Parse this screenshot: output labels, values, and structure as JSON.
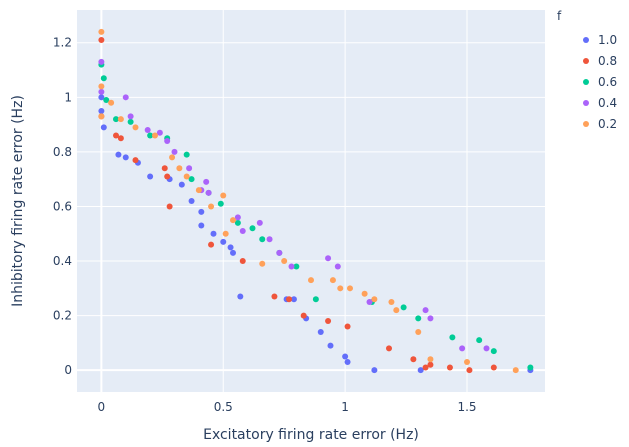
{
  "chart_data": {
    "type": "scatter",
    "xlabel": "Excitatory firing rate error (Hz)",
    "ylabel": "Inhibitory firing rate error (Hz)",
    "xlim": [
      -0.1,
      1.82
    ],
    "ylim": [
      -0.08,
      1.32
    ],
    "x_ticks": [
      0,
      0.5,
      1,
      1.5
    ],
    "x_tick_labels": [
      "0",
      "0.5",
      "1",
      "1.5"
    ],
    "y_ticks": [
      0,
      0.2,
      0.4,
      0.6,
      0.8,
      1,
      1.2
    ],
    "y_tick_labels": [
      "0",
      "0.2",
      "0.4",
      "0.6",
      "0.8",
      "1",
      "1.2"
    ],
    "grid": true,
    "plot_background": "#e5ecf6",
    "legend_title": "f",
    "legend_position": "top-right",
    "series": [
      {
        "name": "1.0",
        "color": "#636efa",
        "points": [
          [
            0.0,
            1.0
          ],
          [
            0.0,
            0.95
          ],
          [
            0.01,
            0.89
          ],
          [
            0.07,
            0.79
          ],
          [
            0.1,
            0.78
          ],
          [
            0.15,
            0.76
          ],
          [
            0.2,
            0.71
          ],
          [
            0.28,
            0.7
          ],
          [
            0.33,
            0.68
          ],
          [
            0.37,
            0.62
          ],
          [
            0.41,
            0.58
          ],
          [
            0.41,
            0.53
          ],
          [
            0.46,
            0.5
          ],
          [
            0.5,
            0.47
          ],
          [
            0.53,
            0.45
          ],
          [
            0.54,
            0.43
          ],
          [
            0.57,
            0.27
          ],
          [
            0.76,
            0.26
          ],
          [
            0.79,
            0.26
          ],
          [
            0.84,
            0.19
          ],
          [
            0.9,
            0.14
          ],
          [
            0.94,
            0.09
          ],
          [
            1.0,
            0.05
          ],
          [
            1.01,
            0.03
          ],
          [
            1.12,
            0.0
          ],
          [
            1.31,
            0.0
          ],
          [
            1.76,
            0.0
          ]
        ]
      },
      {
        "name": "0.8",
        "color": "#ef553b",
        "points": [
          [
            0.0,
            1.21
          ],
          [
            0.0,
            0.93
          ],
          [
            0.06,
            0.86
          ],
          [
            0.08,
            0.85
          ],
          [
            0.14,
            0.77
          ],
          [
            0.26,
            0.74
          ],
          [
            0.27,
            0.71
          ],
          [
            0.28,
            0.6
          ],
          [
            0.45,
            0.46
          ],
          [
            0.58,
            0.4
          ],
          [
            0.71,
            0.27
          ],
          [
            0.77,
            0.26
          ],
          [
            0.83,
            0.2
          ],
          [
            0.93,
            0.18
          ],
          [
            1.01,
            0.16
          ],
          [
            1.18,
            0.08
          ],
          [
            1.28,
            0.04
          ],
          [
            1.33,
            0.01
          ],
          [
            1.35,
            0.02
          ],
          [
            1.43,
            0.01
          ],
          [
            1.51,
            0.0
          ],
          [
            1.61,
            0.01
          ]
        ]
      },
      {
        "name": "0.6",
        "color": "#00cc96",
        "points": [
          [
            0.0,
            1.12
          ],
          [
            0.01,
            1.07
          ],
          [
            0.02,
            0.99
          ],
          [
            0.06,
            0.92
          ],
          [
            0.12,
            0.91
          ],
          [
            0.2,
            0.86
          ],
          [
            0.27,
            0.85
          ],
          [
            0.35,
            0.79
          ],
          [
            0.37,
            0.7
          ],
          [
            0.44,
            0.65
          ],
          [
            0.49,
            0.61
          ],
          [
            0.56,
            0.54
          ],
          [
            0.62,
            0.52
          ],
          [
            0.66,
            0.48
          ],
          [
            0.73,
            0.43
          ],
          [
            0.8,
            0.38
          ],
          [
            0.88,
            0.26
          ],
          [
            1.11,
            0.25
          ],
          [
            1.24,
            0.23
          ],
          [
            1.3,
            0.19
          ],
          [
            1.44,
            0.12
          ],
          [
            1.55,
            0.11
          ],
          [
            1.61,
            0.07
          ],
          [
            1.76,
            0.01
          ]
        ]
      },
      {
        "name": "0.4",
        "color": "#ab63fa",
        "points": [
          [
            0.0,
            1.13
          ],
          [
            0.0,
            1.02
          ],
          [
            0.1,
            1.0
          ],
          [
            0.12,
            0.93
          ],
          [
            0.19,
            0.88
          ],
          [
            0.24,
            0.87
          ],
          [
            0.27,
            0.84
          ],
          [
            0.3,
            0.8
          ],
          [
            0.36,
            0.74
          ],
          [
            0.41,
            0.66
          ],
          [
            0.43,
            0.69
          ],
          [
            0.44,
            0.65
          ],
          [
            0.56,
            0.56
          ],
          [
            0.58,
            0.51
          ],
          [
            0.65,
            0.54
          ],
          [
            0.69,
            0.48
          ],
          [
            0.73,
            0.43
          ],
          [
            0.78,
            0.38
          ],
          [
            0.93,
            0.41
          ],
          [
            0.97,
            0.38
          ],
          [
            1.1,
            0.25
          ],
          [
            1.33,
            0.22
          ],
          [
            1.35,
            0.19
          ],
          [
            1.48,
            0.08
          ],
          [
            1.58,
            0.08
          ]
        ]
      },
      {
        "name": "0.2",
        "color": "#ffa15a",
        "points": [
          [
            0.0,
            1.24
          ],
          [
            0.0,
            1.04
          ],
          [
            0.0,
            0.93
          ],
          [
            0.04,
            0.98
          ],
          [
            0.08,
            0.92
          ],
          [
            0.14,
            0.89
          ],
          [
            0.22,
            0.86
          ],
          [
            0.29,
            0.78
          ],
          [
            0.32,
            0.74
          ],
          [
            0.35,
            0.71
          ],
          [
            0.4,
            0.66
          ],
          [
            0.45,
            0.6
          ],
          [
            0.5,
            0.64
          ],
          [
            0.51,
            0.5
          ],
          [
            0.54,
            0.55
          ],
          [
            0.66,
            0.39
          ],
          [
            0.75,
            0.4
          ],
          [
            0.86,
            0.33
          ],
          [
            0.95,
            0.33
          ],
          [
            0.98,
            0.3
          ],
          [
            1.02,
            0.3
          ],
          [
            1.08,
            0.28
          ],
          [
            1.12,
            0.26
          ],
          [
            1.19,
            0.25
          ],
          [
            1.21,
            0.22
          ],
          [
            1.3,
            0.14
          ],
          [
            1.35,
            0.04
          ],
          [
            1.5,
            0.03
          ],
          [
            1.7,
            0.0
          ]
        ]
      }
    ]
  }
}
